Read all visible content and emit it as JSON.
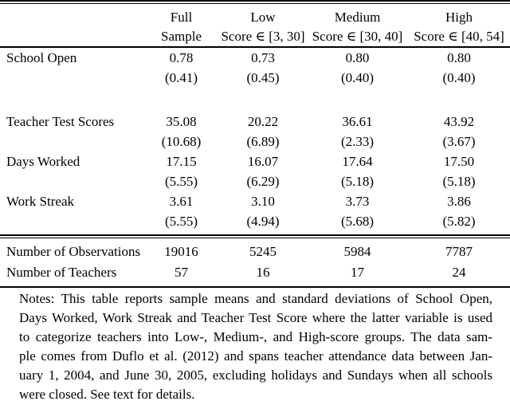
{
  "table": {
    "col_headers": [
      {
        "line1": "Full",
        "line2": "Sample"
      },
      {
        "line1": "Low",
        "line2": "Score ∈ [3, 30]"
      },
      {
        "line1": "Medium",
        "line2": "Score ∈ [30, 40]"
      },
      {
        "line1": "High",
        "line2": "Score ∈ [40, 54]"
      }
    ],
    "rows": [
      {
        "label": "School Open",
        "means": [
          "0.78",
          "0.73",
          "0.80",
          "0.80"
        ],
        "sds": [
          "(0.41)",
          "(0.45)",
          "(0.40)",
          "(0.40)"
        ]
      },
      {
        "label": "Teacher Test Scores",
        "means": [
          "35.08",
          "20.22",
          "36.61",
          "43.92"
        ],
        "sds": [
          "(10.68)",
          "(6.89)",
          "(2.33)",
          "(3.67)"
        ]
      },
      {
        "label": "Days Worked",
        "means": [
          "17.15",
          "16.07",
          "17.64",
          "17.50"
        ],
        "sds": [
          "(5.55)",
          "(6.29)",
          "(5.18)",
          "(5.18)"
        ]
      },
      {
        "label": "Work Streak",
        "means": [
          "3.61",
          "3.10",
          "3.73",
          "3.86"
        ],
        "sds": [
          "(5.55)",
          "(4.94)",
          "(5.68)",
          "(5.82)"
        ]
      }
    ],
    "summary_rows": [
      {
        "label": "Number of Observations",
        "values": [
          "19016",
          "5245",
          "5984",
          "7787"
        ]
      },
      {
        "label": "Number of Teachers",
        "values": [
          "57",
          "16",
          "17",
          "24"
        ]
      }
    ]
  },
  "notes": {
    "lines": [
      "Notes: This table reports sample means and standard deviations of School Open,",
      "Days Worked, Work Streak and Teacher Test Score where the latter variable is used",
      "to categorize teachers into Low-, Medium-, and High-score groups. The data sam-",
      "ple comes from Duflo et al. (2012) and spans teacher attendance data between Jan-",
      "uary 1, 2004, and June 30, 2005, excluding holidays and Sundays when all schools",
      "were closed. See text for details."
    ]
  }
}
